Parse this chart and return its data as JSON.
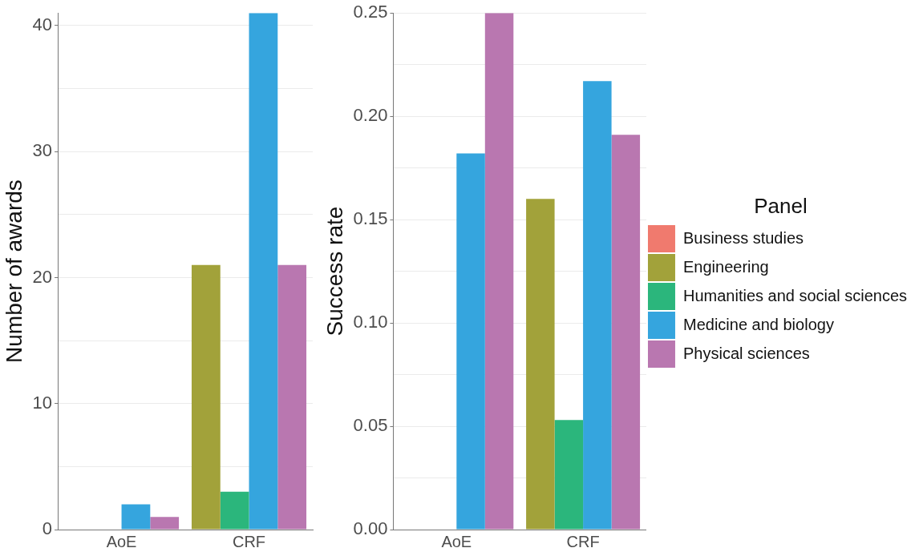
{
  "chart_data": [
    {
      "type": "bar",
      "categories": [
        "AoE",
        "CRF"
      ],
      "ylabel": "Number of awards",
      "ylim": [
        0,
        41
      ],
      "yticks": [
        0,
        {
          "value": 5,
          "label": null
        },
        10,
        {
          "value": 15,
          "label": null
        },
        20,
        {
          "value": 25,
          "label": null
        },
        30,
        {
          "value": 35,
          "label": null
        },
        40
      ],
      "grid": "y",
      "legend": false,
      "series": [
        {
          "color": "#f07a6e",
          "values": [
            null,
            null
          ]
        },
        {
          "color": "#a2a23a",
          "values": [
            0,
            21
          ]
        },
        {
          "color": "#2bb67c",
          "values": [
            0,
            3
          ]
        },
        {
          "color": "#35a5de",
          "values": [
            2,
            41
          ]
        },
        {
          "color": "#b977b0",
          "values": [
            1,
            21
          ]
        }
      ]
    },
    {
      "type": "bar",
      "categories": [
        "AoE",
        "CRF"
      ],
      "ylabel": "Success rate",
      "ylim": [
        0,
        0.25
      ],
      "yticks": [
        {
          "value": 0,
          "label": "0.00"
        },
        {
          "value": 0.025,
          "label": null
        },
        {
          "value": 0.05,
          "label": "0.05"
        },
        {
          "value": 0.075,
          "label": null
        },
        {
          "value": 0.1,
          "label": "0.10"
        },
        {
          "value": 0.125,
          "label": null
        },
        {
          "value": 0.15,
          "label": "0.15"
        },
        {
          "value": 0.175,
          "label": null
        },
        {
          "value": 0.2,
          "label": "0.20"
        },
        {
          "value": 0.225,
          "label": null
        },
        {
          "value": 0.25,
          "label": "0.25"
        }
      ],
      "grid": "y",
      "legend": "right",
      "legend_title": "Panel",
      "series": [
        {
          "name": "Business studies",
          "color": "#f07a6e",
          "values": [
            null,
            null
          ]
        },
        {
          "name": "Engineering",
          "color": "#a2a23a",
          "values": [
            0,
            0.16
          ]
        },
        {
          "name": "Humanities and social sciences",
          "color": "#2bb67c",
          "values": [
            0,
            0.053
          ]
        },
        {
          "name": "Medicine and biology",
          "color": "#35a5de",
          "values": [
            0.182,
            0.217
          ]
        },
        {
          "name": "Physical sciences",
          "color": "#b977b0",
          "values": [
            0.25,
            0.191
          ]
        }
      ]
    }
  ]
}
